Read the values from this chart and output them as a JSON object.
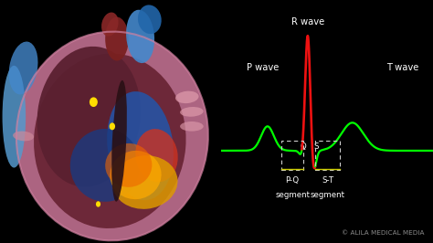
{
  "background_color": "#000000",
  "ecg_color": "#00ff00",
  "qrs_color": "#ee1111",
  "segment_color": "#cccc00",
  "text_color": "#ffffff",
  "watermark": "© ALILA MEDICAL MEDIA",
  "watermark_color": "#999999",
  "p_wave_label": "P wave",
  "r_wave_label": "R wave",
  "t_wave_label": "T wave",
  "q_label": "Q",
  "s_label": "S",
  "pq_label1": "P-Q",
  "pq_label2": "segment",
  "st_label1": "S-T",
  "st_label2": "segment",
  "fig_width": 4.74,
  "fig_height": 2.66,
  "dpi": 100,
  "heart": {
    "body_color": "#c07090",
    "body_color2": "#a05060",
    "left_atrium_color": "#7a2a3a",
    "right_atrium_color": "#8a3040",
    "left_ventricle_blue": "#2255aa",
    "left_ventricle_blue2": "#1a3a80",
    "right_ventricle_red": "#cc3030",
    "septum_color": "#3a1a1a",
    "aorta_color": "#7a2020",
    "pulm_blue": "#4488cc",
    "pulm_blue2": "#2266aa",
    "vessel_left_blue": "#5599cc",
    "vessel_right_pink": "#cc8899",
    "gold_color": "#dd9900",
    "gold_color2": "#ffaa00",
    "orange_color": "#ee6600",
    "sa_node": "#ffdd00",
    "av_node": "#ffdd00",
    "apex_node": "#ffdd00"
  }
}
